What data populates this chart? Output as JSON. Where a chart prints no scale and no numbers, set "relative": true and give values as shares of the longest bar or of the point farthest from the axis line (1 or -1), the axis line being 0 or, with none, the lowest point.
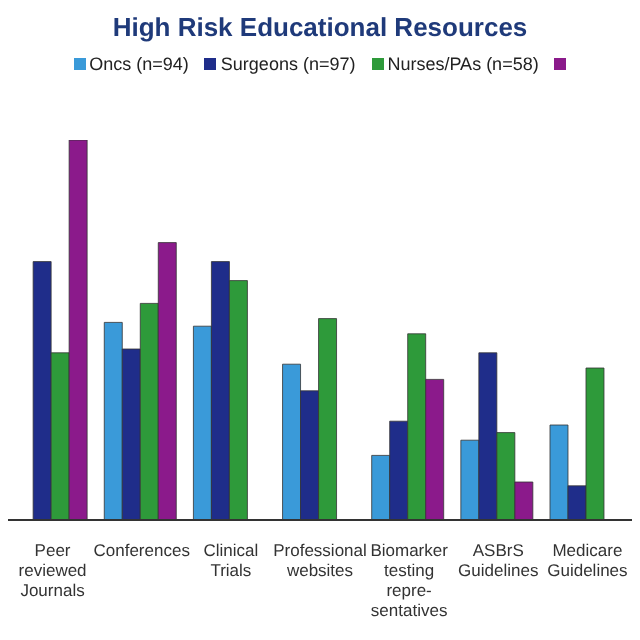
{
  "chart_data": {
    "type": "bar",
    "title": "High Risk Educational Resources",
    "relative": true,
    "legend": "top",
    "categories": [
      "Peer reviewed Journals",
      "Conferences",
      "Clinical Trials",
      "Professional websites",
      "Biomarker testing repre- sentatives",
      "ASBrS Guidelines",
      "Medicare Guidelines"
    ],
    "series": [
      {
        "name": "Oncs (n=94)",
        "color": "#3a9ad9",
        "values": [
          null,
          0.52,
          0.51,
          0.41,
          0.17,
          0.21,
          0.25
        ]
      },
      {
        "name": "Surgeons (n=97)",
        "color": "#1f2d8a",
        "values": [
          0.68,
          0.45,
          0.68,
          0.34,
          0.26,
          0.44,
          0.09
        ]
      },
      {
        "name": "Nurses/PAs (n=58)",
        "color": "#2e9a3a",
        "values": [
          0.44,
          0.57,
          0.63,
          0.53,
          0.49,
          0.23,
          0.4
        ]
      },
      {
        "color": "#8b1a8b",
        "values": [
          1,
          0.73,
          null,
          null,
          0.37,
          0.1,
          null
        ]
      }
    ]
  }
}
